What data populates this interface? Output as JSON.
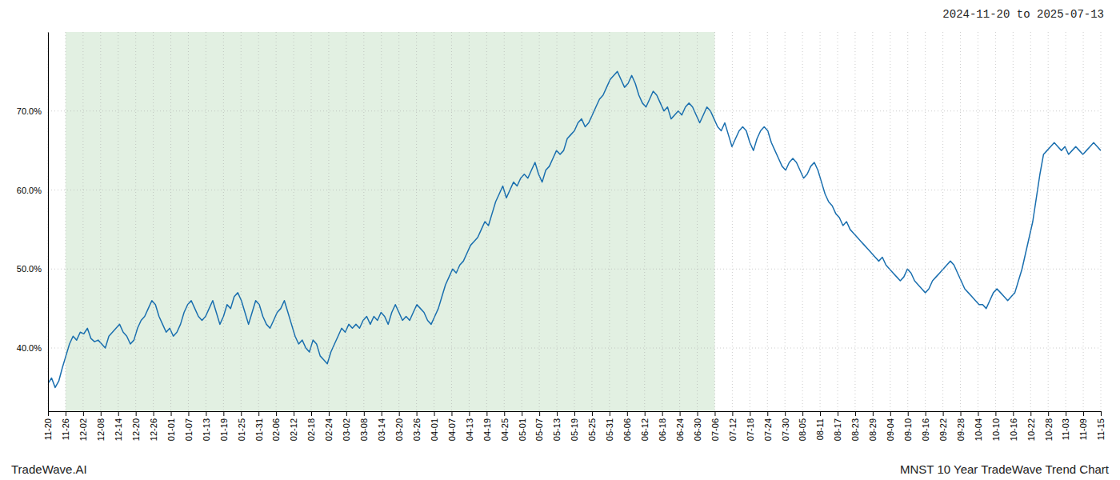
{
  "chart_data": {
    "type": "line",
    "title": "MNST 10 Year TradeWave Trend Chart",
    "subtitle": "2024-11-20 to 2025-07-13",
    "annotations": [
      "TradeWave.AI"
    ],
    "color": "#1a6faf",
    "values": [
      35.5,
      36.2,
      35.0,
      35.8,
      37.5,
      39.0,
      40.5,
      41.5,
      41.0,
      42.0,
      41.8,
      42.5,
      41.2,
      40.8,
      41.0,
      40.5,
      40.0,
      41.5,
      42.0,
      42.5,
      43.0,
      42.0,
      41.5,
      40.5,
      41.0,
      42.5,
      43.5,
      44.0,
      45.0,
      46.0,
      45.5,
      44.0,
      43.0,
      42.0,
      42.5,
      41.5,
      42.0,
      43.0,
      44.5,
      45.5,
      46.0,
      45.0,
      44.0,
      43.5,
      44.0,
      45.0,
      46.0,
      44.5,
      43.0,
      44.0,
      45.5,
      45.0,
      46.5,
      47.0,
      46.0,
      44.5,
      43.0,
      44.5,
      46.0,
      45.5,
      44.0,
      43.0,
      42.5,
      43.5,
      44.5,
      45.0,
      46.0,
      44.5,
      43.0,
      41.5,
      40.5,
      41.0,
      40.0,
      39.5,
      41.0,
      40.5,
      39.0,
      38.5,
      38.0,
      39.5,
      40.5,
      41.5,
      42.5,
      42.0,
      43.0,
      42.5,
      43.0,
      42.5,
      43.5,
      44.0,
      43.0,
      44.0,
      43.5,
      44.5,
      44.0,
      43.0,
      44.5,
      45.5,
      44.5,
      43.5,
      44.0,
      43.5,
      44.5,
      45.5,
      45.0,
      44.5,
      43.5,
      43.0,
      44.0,
      45.0,
      46.5,
      48.0,
      49.0,
      50.0,
      49.5,
      50.5,
      51.0,
      52.0,
      53.0,
      53.5,
      54.0,
      55.0,
      56.0,
      55.5,
      57.0,
      58.5,
      59.5,
      60.5,
      59.0,
      60.0,
      61.0,
      60.5,
      61.5,
      62.0,
      61.5,
      62.5,
      63.5,
      62.0,
      61.0,
      62.5,
      63.0,
      64.0,
      65.0,
      64.5,
      65.0,
      66.5,
      67.0,
      67.5,
      68.5,
      69.0,
      68.0,
      68.5,
      69.5,
      70.5,
      71.5,
      72.0,
      73.0,
      74.0,
      74.5,
      75.0,
      74.0,
      73.0,
      73.5,
      74.5,
      73.5,
      72.0,
      71.0,
      70.5,
      71.5,
      72.5,
      72.0,
      71.0,
      70.0,
      70.5,
      69.0,
      69.5,
      70.0,
      69.5,
      70.5,
      71.0,
      70.5,
      69.5,
      68.5,
      69.5,
      70.5,
      70.0,
      69.0,
      68.0,
      67.5,
      68.5,
      67.0,
      65.5,
      66.5,
      67.5,
      68.0,
      67.5,
      66.0,
      65.0,
      66.5,
      67.5,
      68.0,
      67.5,
      66.0,
      65.0,
      64.0,
      63.0,
      62.5,
      63.5,
      64.0,
      63.5,
      62.5,
      61.5,
      62.0,
      63.0,
      63.5,
      62.5,
      61.0,
      59.5,
      58.5,
      58.0,
      57.0,
      56.5,
      55.5,
      56.0,
      55.0,
      54.5,
      54.0,
      53.5,
      53.0,
      52.5,
      52.0,
      51.5,
      51.0,
      51.5,
      50.5,
      50.0,
      49.5,
      49.0,
      48.5,
      49.0,
      50.0,
      49.5,
      48.5,
      48.0,
      47.5,
      47.0,
      47.5,
      48.5,
      49.0,
      49.5,
      50.0,
      50.5,
      51.0,
      50.5,
      49.5,
      48.5,
      47.5,
      47.0,
      46.5,
      46.0,
      45.5,
      45.5,
      45.0,
      46.0,
      47.0,
      47.5,
      47.0,
      46.5,
      46.0,
      46.5,
      47.0,
      48.5,
      50.0,
      52.0,
      54.0,
      56.0,
      59.0,
      62.0,
      64.5,
      65.0,
      65.5,
      66.0,
      65.5,
      65.0,
      65.5,
      64.5,
      65.0,
      65.5,
      65.0,
      64.5,
      65.0,
      65.5,
      66.0,
      65.5,
      65.0
    ],
    "xticks": [
      "11-20",
      "11-26",
      "12-02",
      "12-08",
      "12-14",
      "12-20",
      "12-26",
      "01-01",
      "01-07",
      "01-13",
      "01-19",
      "01-25",
      "01-31",
      "02-06",
      "02-12",
      "02-18",
      "02-24",
      "03-02",
      "03-08",
      "03-14",
      "03-20",
      "03-26",
      "04-01",
      "04-07",
      "04-13",
      "04-19",
      "04-25",
      "05-01",
      "05-07",
      "05-13",
      "05-19",
      "05-25",
      "05-31",
      "06-06",
      "06-12",
      "06-18",
      "06-24",
      "06-30",
      "07-06",
      "07-12",
      "07-18",
      "07-24",
      "07-30",
      "08-05",
      "08-11",
      "08-17",
      "08-23",
      "08-29",
      "09-04",
      "09-10",
      "09-16",
      "09-22",
      "09-28",
      "10-04",
      "10-10",
      "10-16",
      "10-22",
      "10-28",
      "11-03",
      "11-09",
      "11-15"
    ],
    "shade": {
      "start": "11-26",
      "end": "07-06",
      "color": "#d6ead6"
    },
    "ylim": [
      32,
      80
    ],
    "yticks": [
      {
        "value": 40.0,
        "label": "40.0%"
      },
      {
        "value": 50.0,
        "label": "50.0%"
      },
      {
        "value": 60.0,
        "label": "60.0%"
      },
      {
        "value": 70.0,
        "label": "70.0%"
      }
    ],
    "grid": true
  }
}
